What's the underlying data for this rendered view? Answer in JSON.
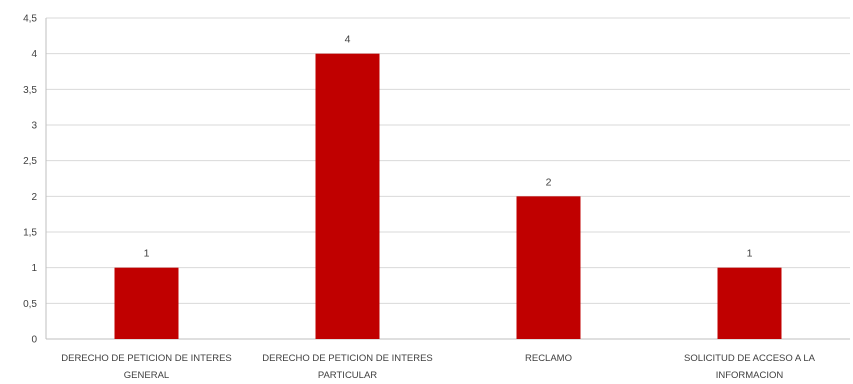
{
  "chart_data": {
    "type": "bar",
    "title": "",
    "xlabel": "",
    "ylabel": "",
    "categories": [
      [
        "DERECHO DE PETICION DE INTERES",
        "GENERAL"
      ],
      [
        "DERECHO DE PETICION DE INTERES",
        "PARTICULAR"
      ],
      [
        "RECLAMO"
      ],
      [
        "SOLICITUD DE ACCESO A LA",
        "INFORMACION"
      ]
    ],
    "values": [
      1,
      4,
      2,
      1
    ],
    "data_labels": [
      "1",
      "4",
      "2",
      "1"
    ],
    "ylim": [
      0,
      4.5
    ],
    "yticks": [
      0,
      0.5,
      1,
      1.5,
      2,
      2.5,
      3,
      3.5,
      4,
      4.5
    ],
    "ytick_labels": [
      "0",
      "0,5",
      "1",
      "1,5",
      "2",
      "2,5",
      "3",
      "3,5",
      "4",
      "4,5"
    ],
    "grid": true,
    "legend": "none",
    "colors": {
      "bar": "#c00000",
      "grid": "#d9d9d9",
      "axis": "#bfbfbf",
      "text": "#404040"
    }
  }
}
